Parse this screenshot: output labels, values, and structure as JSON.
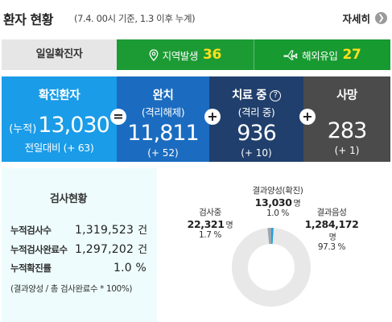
{
  "header": {
    "title": "환자 현황",
    "subtitle": "(7.4. 00시 기준, 1.3 이후 누계)",
    "more_label": "자세히",
    "more_icon": "chevron-right-icon"
  },
  "daily": {
    "label": "일일확진자",
    "local_label": "지역발생",
    "local_value": "36",
    "abroad_label": "해외유입",
    "abroad_value": "27",
    "number_color": "#ffe01b"
  },
  "stats": {
    "confirmed": {
      "label": "확진환자",
      "prefix": "(누적)",
      "value": "13,030",
      "delta": "전일대비 (+ 63)",
      "color": "#1a9ce8"
    },
    "released": {
      "label": "완치",
      "sublabel": "(격리해제)",
      "value": "11,811",
      "delta": "(+ 52)",
      "color": "#1b6cc0"
    },
    "treating": {
      "label": "치료 중",
      "sublabel": "(격리 중)",
      "value": "936",
      "delta": "(+ 10)",
      "color": "#203f6c"
    },
    "deceased": {
      "label": "사망",
      "value": "283",
      "delta": "(+ 1)",
      "color": "#4b4b4b"
    },
    "ops": [
      "=",
      "+",
      "+"
    ]
  },
  "tests": {
    "title": "검사현황",
    "rows": [
      {
        "label": "누적검사수",
        "value": "1,319,523",
        "unit": "건"
      },
      {
        "label": "누적검사완료수",
        "value": "1,297,202",
        "unit": "건"
      },
      {
        "label": "누적확진률",
        "value": "1.0 %"
      }
    ],
    "note": "(결과양성 / 총 검사완료수 * 100%)"
  },
  "chart_data": {
    "type": "pie",
    "categories": [
      "결과양성(확진)",
      "검사중",
      "결과음성"
    ],
    "values": [
      13030,
      22321,
      1284172
    ],
    "percent": [
      1.0,
      1.7,
      97.3
    ],
    "labels": {
      "positive": {
        "name": "결과양성(확진)",
        "value": "13,030",
        "unit": "명",
        "pct": "1.0 %"
      },
      "testing": {
        "name": "검사중",
        "value": "22,321",
        "unit": "명",
        "pct": "1.7 %"
      },
      "negative": {
        "name": "결과음성",
        "value": "1,284,172",
        "unit": "명",
        "pct": "97.3 %"
      }
    },
    "colors": {
      "positive": "#2a9fd8",
      "testing": "#9aa8b0",
      "negative": "#e8e8e8"
    }
  }
}
